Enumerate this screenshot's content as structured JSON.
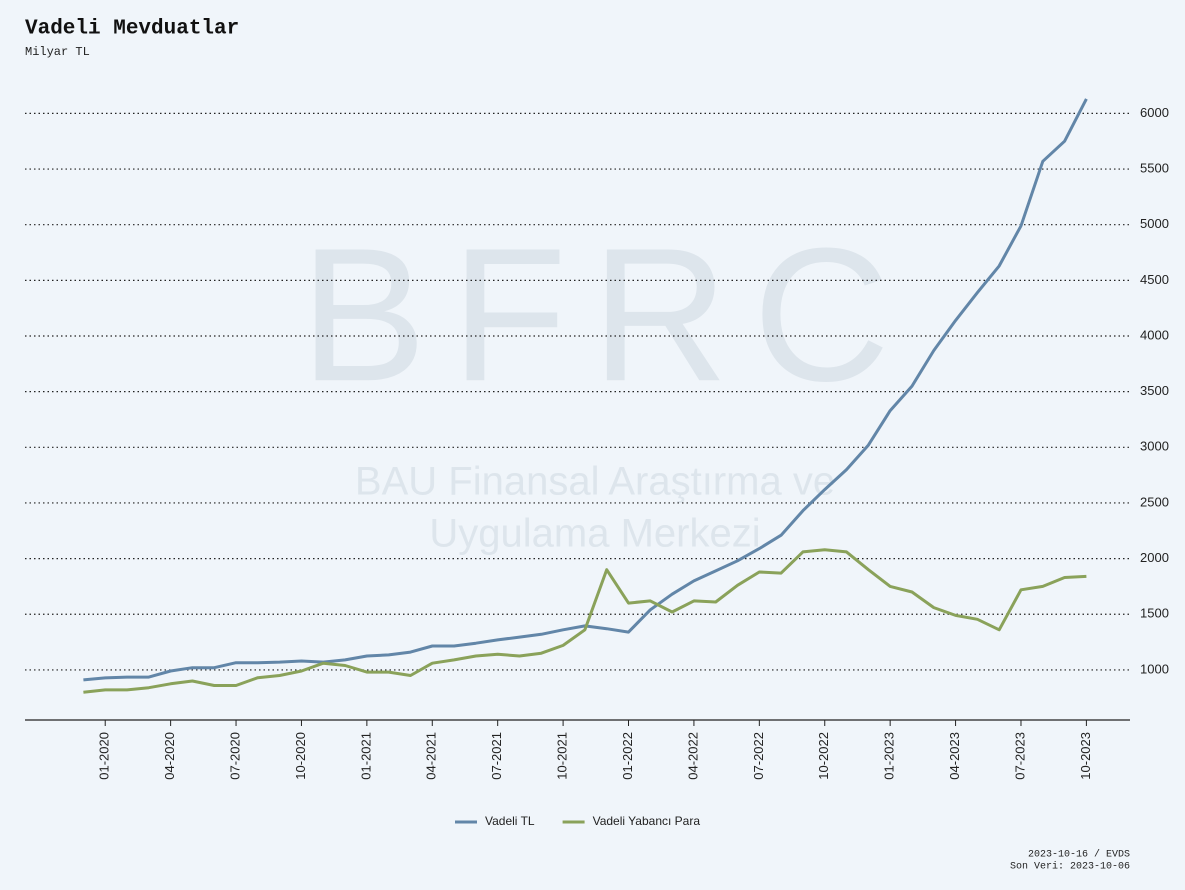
{
  "chart_data": {
    "type": "line",
    "title": "Vadeli Mevduatlar",
    "subtitle": "Milyar TL",
    "watermark": [
      "BFRC",
      "BAU Finansal Araştırma ve",
      "Uygulama Merkezi"
    ],
    "footer": [
      "2023-10-16 / EVDS",
      "Son Veri: 2023-10-06"
    ],
    "x": [
      "2019-12",
      "2020-01",
      "2020-02",
      "2020-03",
      "2020-04",
      "2020-05",
      "2020-06",
      "2020-07",
      "2020-08",
      "2020-09",
      "2020-10",
      "2020-11",
      "2020-12",
      "2021-01",
      "2021-02",
      "2021-03",
      "2021-04",
      "2021-05",
      "2021-06",
      "2021-07",
      "2021-08",
      "2021-09",
      "2021-10",
      "2021-11",
      "2021-12",
      "2022-01",
      "2022-02",
      "2022-03",
      "2022-04",
      "2022-05",
      "2022-06",
      "2022-07",
      "2022-08",
      "2022-09",
      "2022-10",
      "2022-11",
      "2022-12",
      "2023-01",
      "2023-02",
      "2023-03",
      "2023-04",
      "2023-05",
      "2023-06",
      "2023-07",
      "2023-08",
      "2023-09",
      "2023-10"
    ],
    "series": [
      {
        "name": "Vadeli TL",
        "color": "#6286a8",
        "values": [
          910,
          928,
          935,
          935,
          990,
          1020,
          1020,
          1065,
          1065,
          1070,
          1080,
          1070,
          1090,
          1125,
          1135,
          1160,
          1215,
          1215,
          1240,
          1270,
          1295,
          1320,
          1360,
          1395,
          1370,
          1340,
          1540,
          1680,
          1800,
          1890,
          1980,
          2090,
          2210,
          2430,
          2620,
          2800,
          3020,
          3330,
          3550,
          3870,
          4140,
          4390,
          4630,
          4990,
          5570,
          5750,
          6130
        ]
      },
      {
        "name": "Vadeli Yabancı Para",
        "color": "#8aa25a",
        "values": [
          800,
          820,
          820,
          840,
          875,
          900,
          860,
          860,
          930,
          950,
          990,
          1060,
          1040,
          980,
          980,
          950,
          1060,
          1090,
          1125,
          1140,
          1125,
          1150,
          1220,
          1360,
          1900,
          1600,
          1620,
          1520,
          1620,
          1610,
          1760,
          1880,
          1870,
          2060,
          2080,
          2060,
          1900,
          1750,
          1700,
          1560,
          1490,
          1455,
          1360,
          1720,
          1750,
          1830,
          1840
        ]
      }
    ],
    "xlim": [
      "2019-09",
      "2023-12"
    ],
    "xticks": [
      {
        "value": "2020-01",
        "label": "01-2020"
      },
      {
        "value": "2020-04",
        "label": "04-2020"
      },
      {
        "value": "2020-07",
        "label": "07-2020"
      },
      {
        "value": "2020-10",
        "label": "10-2020"
      },
      {
        "value": "2021-01",
        "label": "01-2021"
      },
      {
        "value": "2021-04",
        "label": "04-2021"
      },
      {
        "value": "2021-07",
        "label": "07-2021"
      },
      {
        "value": "2021-10",
        "label": "10-2021"
      },
      {
        "value": "2022-01",
        "label": "01-2022"
      },
      {
        "value": "2022-04",
        "label": "04-2022"
      },
      {
        "value": "2022-07",
        "label": "07-2022"
      },
      {
        "value": "2022-10",
        "label": "10-2022"
      },
      {
        "value": "2023-01",
        "label": "01-2023"
      },
      {
        "value": "2023-04",
        "label": "04-2023"
      },
      {
        "value": "2023-07",
        "label": "07-2023"
      },
      {
        "value": "2023-10",
        "label": "10-2023"
      }
    ],
    "ylim": [
      550,
      6300
    ],
    "yticks": [
      1000,
      1500,
      2000,
      2500,
      3000,
      3500,
      4000,
      4500,
      5000,
      5500,
      6000
    ],
    "grid": true,
    "legend": "bottom"
  }
}
